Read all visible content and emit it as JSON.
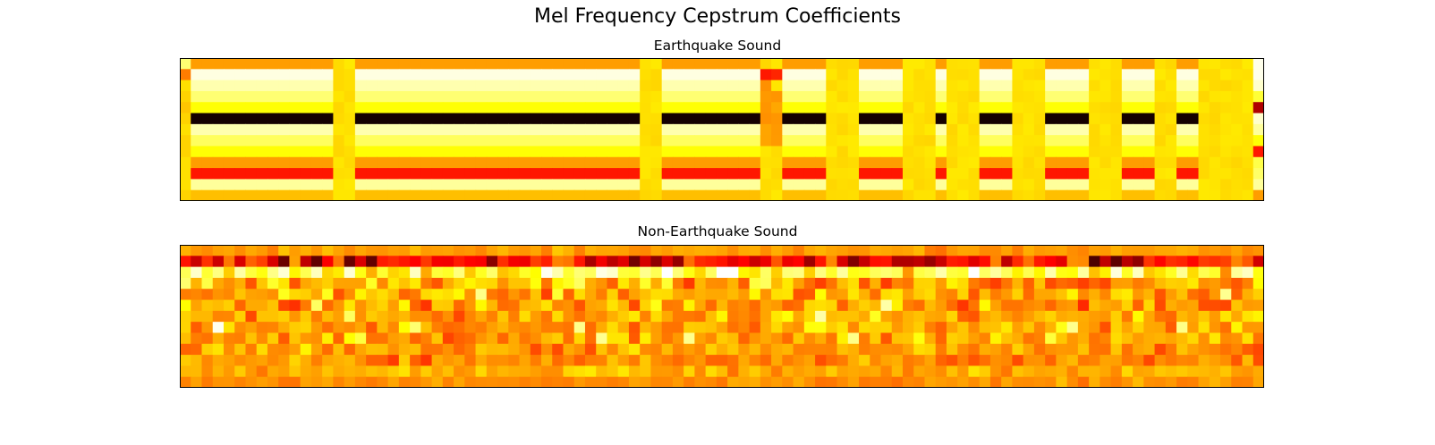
{
  "figure": {
    "title": "Mel Frequency Cepstrum Coefficients"
  },
  "chart_data": [
    {
      "type": "heatmap",
      "title": "Earthquake Sound",
      "colormap": "hot",
      "rows": 13,
      "cols": 99,
      "xlabel": "",
      "ylabel": "",
      "axes_ticks": false,
      "row_values": [
        0.6,
        0.97,
        0.92,
        0.86,
        0.75,
        0.03,
        0.92,
        0.84,
        0.75,
        0.6,
        0.4,
        0.9,
        0.65
      ],
      "column_segments": [
        {
          "from": 0,
          "to": 0,
          "kind": "edge-start"
        },
        {
          "from": 1,
          "to": 13,
          "kind": "pattern"
        },
        {
          "from": 14,
          "to": 15,
          "kind": "flat"
        },
        {
          "from": 16,
          "to": 41,
          "kind": "pattern"
        },
        {
          "from": 42,
          "to": 43,
          "kind": "flat"
        },
        {
          "from": 44,
          "to": 52,
          "kind": "pattern"
        },
        {
          "from": 53,
          "to": 54,
          "kind": "flat-peak"
        },
        {
          "from": 55,
          "to": 58,
          "kind": "pattern"
        },
        {
          "from": 59,
          "to": 61,
          "kind": "flat"
        },
        {
          "from": 62,
          "to": 65,
          "kind": "pattern"
        },
        {
          "from": 66,
          "to": 68,
          "kind": "flat"
        },
        {
          "from": 69,
          "to": 69,
          "kind": "pattern"
        },
        {
          "from": 70,
          "to": 72,
          "kind": "flat"
        },
        {
          "from": 73,
          "to": 75,
          "kind": "pattern"
        },
        {
          "from": 76,
          "to": 78,
          "kind": "flat"
        },
        {
          "from": 79,
          "to": 82,
          "kind": "pattern"
        },
        {
          "from": 83,
          "to": 85,
          "kind": "flat"
        },
        {
          "from": 86,
          "to": 88,
          "kind": "pattern"
        },
        {
          "from": 89,
          "to": 90,
          "kind": "flat"
        },
        {
          "from": 91,
          "to": 92,
          "kind": "pattern"
        },
        {
          "from": 93,
          "to": 97,
          "kind": "flat"
        },
        {
          "from": 98,
          "to": 98,
          "kind": "edge-end"
        }
      ],
      "flat_value": 0.7
    },
    {
      "type": "heatmap",
      "title": "Non-Earthquake Sound",
      "colormap": "hot",
      "rows": 13,
      "cols": 99,
      "xlabel": "",
      "ylabel": "",
      "axes_ticks": false,
      "row_means": [
        0.6,
        0.35,
        0.82,
        0.6,
        0.62,
        0.6,
        0.62,
        0.62,
        0.6,
        0.6,
        0.58,
        0.62,
        0.58
      ],
      "row_spread": [
        0.05,
        0.22,
        0.2,
        0.18,
        0.14,
        0.14,
        0.13,
        0.12,
        0.12,
        0.1,
        0.1,
        0.08,
        0.05
      ]
    }
  ]
}
